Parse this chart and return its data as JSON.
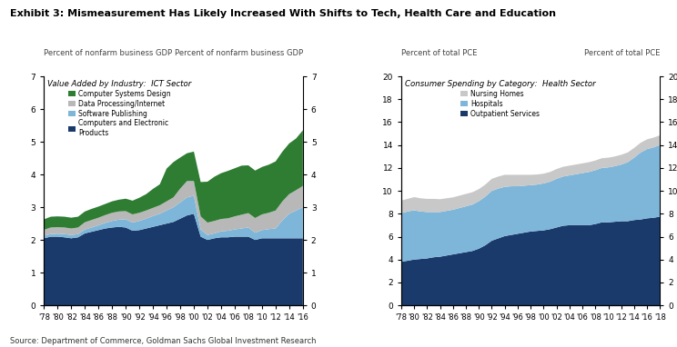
{
  "title": "Exhibit 3: Mismeasurement Has Likely Increased With Shifts to Tech, Health Care and Education",
  "source": "Source: Department of Commerce, Goldman Sachs Global Investment Research",
  "ict_years": [
    1978,
    1979,
    1980,
    1981,
    1982,
    1983,
    1984,
    1985,
    1986,
    1987,
    1988,
    1989,
    1990,
    1991,
    1992,
    1993,
    1994,
    1995,
    1996,
    1997,
    1998,
    1999,
    2000,
    2001,
    2002,
    2003,
    2004,
    2005,
    2006,
    2007,
    2008,
    2009,
    2010,
    2011,
    2012,
    2013,
    2014,
    2015,
    2016
  ],
  "ict_computers": [
    2.05,
    2.1,
    2.1,
    2.08,
    2.05,
    2.08,
    2.2,
    2.25,
    2.3,
    2.35,
    2.38,
    2.4,
    2.38,
    2.28,
    2.3,
    2.35,
    2.4,
    2.45,
    2.5,
    2.55,
    2.65,
    2.75,
    2.8,
    2.1,
    2.0,
    2.05,
    2.08,
    2.08,
    2.1,
    2.1,
    2.1,
    2.0,
    2.05,
    2.05,
    2.05,
    2.05,
    2.05,
    2.05,
    2.05
  ],
  "ict_software": [
    0.08,
    0.08,
    0.09,
    0.1,
    0.1,
    0.1,
    0.12,
    0.13,
    0.15,
    0.17,
    0.2,
    0.22,
    0.25,
    0.25,
    0.28,
    0.3,
    0.33,
    0.35,
    0.4,
    0.45,
    0.5,
    0.55,
    0.55,
    0.22,
    0.15,
    0.15,
    0.18,
    0.2,
    0.22,
    0.25,
    0.28,
    0.22,
    0.25,
    0.28,
    0.3,
    0.55,
    0.75,
    0.85,
    0.95
  ],
  "ict_dataproc": [
    0.18,
    0.2,
    0.2,
    0.2,
    0.2,
    0.2,
    0.22,
    0.23,
    0.23,
    0.24,
    0.25,
    0.25,
    0.25,
    0.25,
    0.25,
    0.25,
    0.25,
    0.26,
    0.28,
    0.3,
    0.42,
    0.5,
    0.45,
    0.4,
    0.38,
    0.38,
    0.38,
    0.38,
    0.4,
    0.42,
    0.44,
    0.45,
    0.48,
    0.5,
    0.55,
    0.58,
    0.6,
    0.62,
    0.65
  ],
  "ict_csdesign": [
    0.32,
    0.33,
    0.33,
    0.33,
    0.33,
    0.33,
    0.33,
    0.34,
    0.34,
    0.34,
    0.35,
    0.36,
    0.38,
    0.42,
    0.46,
    0.5,
    0.58,
    0.64,
    1.0,
    1.08,
    0.95,
    0.85,
    0.9,
    1.05,
    1.25,
    1.35,
    1.4,
    1.45,
    1.47,
    1.5,
    1.46,
    1.45,
    1.45,
    1.47,
    1.5,
    1.52,
    1.55,
    1.58,
    1.7
  ],
  "health_years": [
    1978,
    1979,
    1980,
    1981,
    1982,
    1983,
    1984,
    1985,
    1986,
    1987,
    1988,
    1989,
    1990,
    1991,
    1992,
    1993,
    1994,
    1995,
    1996,
    1997,
    1998,
    1999,
    2000,
    2001,
    2002,
    2003,
    2004,
    2005,
    2006,
    2007,
    2008,
    2009,
    2010,
    2011,
    2012,
    2013,
    2014,
    2015,
    2016,
    2017,
    2018
  ],
  "health_outpatient": [
    3.8,
    3.9,
    4.0,
    4.05,
    4.1,
    4.2,
    4.25,
    4.35,
    4.45,
    4.55,
    4.65,
    4.75,
    4.95,
    5.25,
    5.65,
    5.85,
    6.05,
    6.15,
    6.25,
    6.35,
    6.45,
    6.5,
    6.55,
    6.65,
    6.8,
    6.95,
    7.0,
    7.0,
    7.0,
    7.0,
    7.1,
    7.25,
    7.25,
    7.3,
    7.35,
    7.35,
    7.45,
    7.5,
    7.6,
    7.65,
    7.75
  ],
  "health_hospitals": [
    4.25,
    4.3,
    4.3,
    4.15,
    4.05,
    3.95,
    3.9,
    3.9,
    3.9,
    3.95,
    4.0,
    4.05,
    4.15,
    4.25,
    4.35,
    4.35,
    4.3,
    4.25,
    4.15,
    4.1,
    4.05,
    4.05,
    4.1,
    4.15,
    4.25,
    4.3,
    4.35,
    4.45,
    4.55,
    4.65,
    4.7,
    4.75,
    4.8,
    4.85,
    4.95,
    5.15,
    5.45,
    5.85,
    6.05,
    6.15,
    6.25
  ],
  "health_nursing": [
    1.1,
    1.1,
    1.15,
    1.15,
    1.15,
    1.15,
    1.12,
    1.1,
    1.08,
    1.08,
    1.08,
    1.08,
    1.05,
    1.05,
    1.05,
    1.05,
    1.05,
    1.0,
    1.0,
    0.95,
    0.9,
    0.88,
    0.85,
    0.85,
    0.85,
    0.85,
    0.85,
    0.85,
    0.85,
    0.85,
    0.85,
    0.85,
    0.85,
    0.85,
    0.85,
    0.85,
    0.85,
    0.85,
    0.85,
    0.85,
    0.85
  ],
  "ict_color_computers": "#1a3a6b",
  "ict_color_software": "#7eb6d9",
  "ict_color_dataproc": "#b8b8b8",
  "ict_color_csdesign": "#2e7d32",
  "health_color_outpatient": "#1a3a6b",
  "health_color_hospitals": "#7eb6d9",
  "health_color_nursing": "#c8c8c8",
  "ict_ylim": [
    0,
    7
  ],
  "health_ylim": [
    0,
    20
  ],
  "ict_yticks": [
    0,
    1,
    2,
    3,
    4,
    5,
    6,
    7
  ],
  "health_yticks": [
    0,
    2,
    4,
    6,
    8,
    10,
    12,
    14,
    16,
    18,
    20
  ],
  "ict_xtick_years": [
    1978,
    1980,
    1982,
    1984,
    1986,
    1988,
    1990,
    1992,
    1994,
    1996,
    1998,
    2000,
    2002,
    2004,
    2006,
    2008,
    2010,
    2012,
    2014,
    2016
  ],
  "ict_xtick_labels": [
    "'78",
    "'80",
    "'82",
    "'84",
    "'86",
    "'88",
    "'90",
    "'92",
    "'94",
    "'96",
    "'98",
    "'00",
    "'02",
    "'04",
    "'06",
    "'08",
    "'10",
    "'12",
    "'14",
    "'16"
  ],
  "health_xtick_years": [
    1978,
    1980,
    1982,
    1984,
    1986,
    1988,
    1990,
    1992,
    1994,
    1996,
    1998,
    2000,
    2002,
    2004,
    2006,
    2008,
    2010,
    2012,
    2014,
    2016,
    2018
  ],
  "health_xtick_labels": [
    "'78",
    "'80",
    "'82",
    "'84",
    "'86",
    "'88",
    "'90",
    "'92",
    "'94",
    "'96",
    "'98",
    "'00",
    "'02",
    "'04",
    "'06",
    "'08",
    "'10",
    "'12",
    "'14",
    "'16",
    "'18"
  ]
}
